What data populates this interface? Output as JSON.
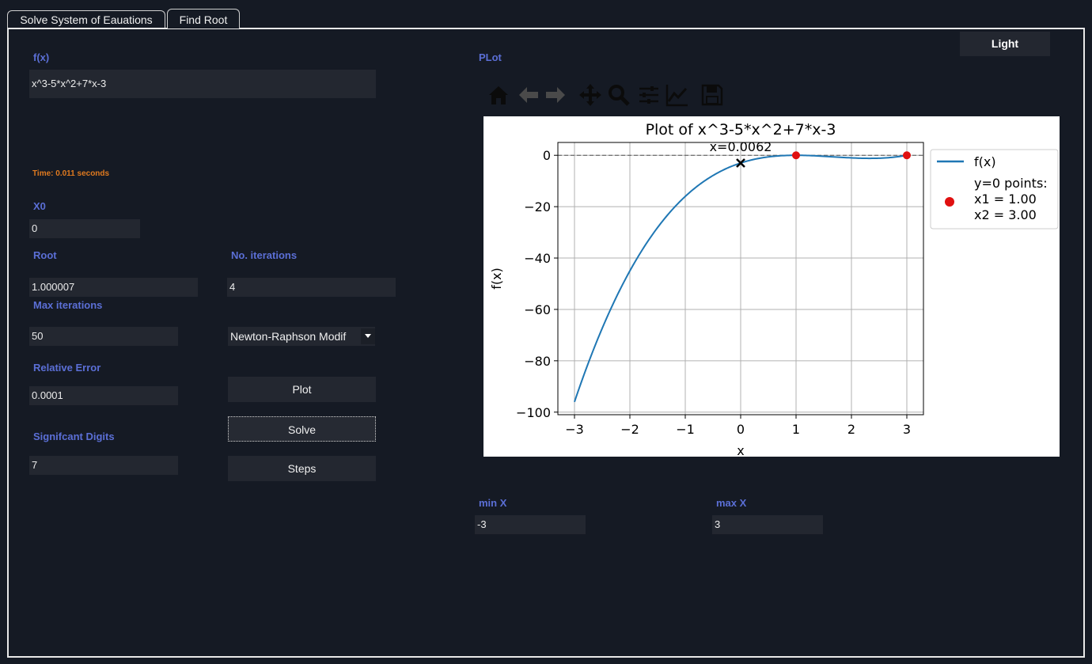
{
  "tabs": [
    {
      "label": "Solve System of Eauations"
    },
    {
      "label": "Find Root"
    }
  ],
  "theme_button": "Light",
  "left": {
    "fx_label": "f(x)",
    "fx_value": "x^3-5*x^2+7*x-3",
    "time_text": "Time: 0.011 seconds",
    "x0_label": "X0",
    "x0_value": "0",
    "root_label": "Root",
    "root_value": "1.000007",
    "iter_label": "No. iterations",
    "iter_value": "4",
    "maxiter_label": "Max iterations",
    "maxiter_value": "50",
    "method_value": "Newton-Raphson Modif",
    "relerr_label": "Relative Error",
    "relerr_value": "0.0001",
    "sigdig_label": "Signifcant Digits",
    "sigdig_value": "7",
    "plot_button": "Plot",
    "solve_button": "Solve",
    "steps_button": "Steps"
  },
  "right": {
    "plot_label": "PLot",
    "minx_label": "min X",
    "minx_value": "-3",
    "maxx_label": "max X",
    "maxx_value": "3"
  },
  "toolbar_icons": [
    "home-icon",
    "back-arrow-icon",
    "forward-arrow-icon",
    "pan-icon",
    "zoom-icon",
    "configure-subplots-icon",
    "edit-axes-icon",
    "save-icon"
  ],
  "chart_data": {
    "type": "line",
    "title": "Plot of x^3-5*x^2+7*x-3",
    "xlabel": "x",
    "ylabel": "f(x)",
    "xlim": [
      -3.3,
      3.3
    ],
    "ylim": [
      -101,
      5
    ],
    "xticks": [
      -3,
      -2,
      -1,
      0,
      1,
      2,
      3
    ],
    "yticks": [
      0,
      -20,
      -40,
      -60,
      -80,
      -100
    ],
    "grid": true,
    "series": [
      {
        "name": "f(x)",
        "color": "#1f77b4",
        "x": [
          -3,
          -2.75,
          -2.5,
          -2.25,
          -2,
          -1.75,
          -1.5,
          -1.25,
          -1,
          -0.75,
          -0.5,
          -0.25,
          0,
          0.25,
          0.5,
          0.75,
          1,
          1.25,
          1.5,
          1.75,
          2,
          2.25,
          2.5,
          2.75,
          3
        ],
        "y": [
          -96,
          -81.05,
          -68.06,
          -56.92,
          -47.5,
          -39.67,
          -31.25,
          -25.73,
          -16,
          -11.25,
          -7.37,
          -4.55,
          -3,
          -1.77,
          -0.62,
          -0.06,
          0,
          -0.05,
          -0.12,
          -0.19,
          -1,
          -1.56,
          -1.13,
          -0.56,
          0
        ]
      }
    ],
    "roots": [
      {
        "x": 1,
        "y": 0
      },
      {
        "x": 3,
        "y": 0
      }
    ],
    "roots_color": "#e01010",
    "marker": {
      "x": 0,
      "y": -3,
      "label": "x=0.0062"
    },
    "legend": {
      "position": "right",
      "entries": [
        "f(x)",
        "y=0 points:",
        "x1 = 1.00",
        "x2 = 3.00"
      ]
    }
  }
}
